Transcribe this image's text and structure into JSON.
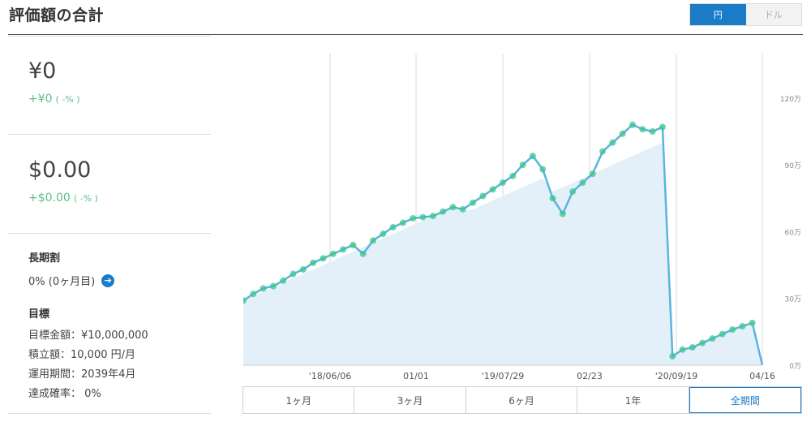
{
  "header": {
    "title": "評価額の合計",
    "currency_options": [
      {
        "label": "円",
        "active": true
      },
      {
        "label": "ドル",
        "active": false
      }
    ]
  },
  "summary": {
    "yen": {
      "amount": "¥0",
      "change": "+¥0",
      "change_pct": "( -% )"
    },
    "usd": {
      "amount": "$0.00",
      "change": "+$0.00",
      "change_pct": "( -% )"
    }
  },
  "long_term": {
    "heading": "長期割",
    "value": "0% (0ヶ月目)",
    "arrow": "arrow-right-icon"
  },
  "goal": {
    "heading": "目標",
    "target_amount": "目標金額：¥10,000,000",
    "monthly_deposit": "積立額：10,000 円/月",
    "period": "運用期間：2039年4月",
    "probability": "達成確率： 0%"
  },
  "period_tabs": [
    {
      "label": "1ヶ月",
      "active": false
    },
    {
      "label": "3ヶ月",
      "active": false
    },
    {
      "label": "6ヶ月",
      "active": false
    },
    {
      "label": "1年",
      "active": false
    },
    {
      "label": "全期間",
      "active": true
    }
  ],
  "colors": {
    "accent": "#1a7bc7",
    "positive": "#5cbf8a",
    "line": "#5ab4e0",
    "area": "#e3f0fa",
    "marker": "#3ec48e"
  },
  "chart_data": {
    "type": "line",
    "x_tick_labels": [
      "'18/06/06",
      "01/01",
      "'19/07/29",
      "02/23",
      "'20/09/19",
      "04/16"
    ],
    "y_tick_labels": [
      "0万",
      "30万",
      "60万",
      "90万",
      "120万"
    ],
    "ylim": [
      0,
      1400000
    ],
    "grid": "vertical",
    "series": [
      {
        "role": "valuation",
        "values": [
          290000,
          320000,
          345000,
          355000,
          380000,
          410000,
          430000,
          460000,
          480000,
          500000,
          520000,
          540000,
          500000,
          560000,
          590000,
          620000,
          640000,
          660000,
          665000,
          670000,
          690000,
          710000,
          700000,
          730000,
          760000,
          790000,
          820000,
          850000,
          900000,
          940000,
          880000,
          750000,
          680000,
          780000,
          820000,
          860000,
          960000,
          1000000,
          1040000,
          1080000,
          1060000,
          1050000,
          1070000,
          40000,
          70000,
          80000,
          100000,
          120000,
          140000,
          160000,
          175000,
          190000,
          0
        ]
      },
      {
        "role": "principal",
        "values": [
          290000,
          310000,
          330000,
          350000,
          370000,
          390000,
          410000,
          430000,
          450000,
          470000,
          490000,
          510000,
          530000,
          550000,
          570000,
          590000,
          610000,
          630000,
          650000,
          670000,
          690000,
          710000,
          690000,
          700000,
          720000,
          740000,
          760000,
          780000,
          800000,
          820000,
          840000,
          780000,
          800000,
          820000,
          840000,
          860000,
          880000,
          900000,
          920000,
          940000,
          960000,
          980000,
          1000000,
          40000,
          60000,
          80000,
          100000,
          120000,
          140000,
          160000,
          175000,
          190000,
          0
        ]
      }
    ]
  }
}
